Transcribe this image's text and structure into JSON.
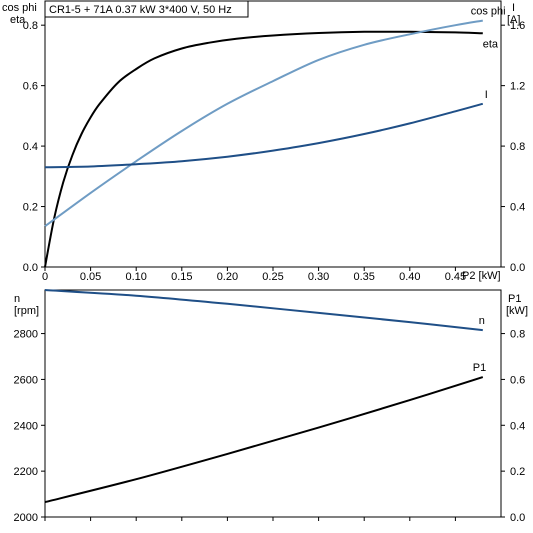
{
  "title": "CR1-5 + 71A   0.37 kW   3*400 V, 50 Hz",
  "colors": {
    "eta": "#000000",
    "cosphi": "#6f9cc4",
    "current": "#1f4f87",
    "speed": "#1f4f87",
    "power": "#000000",
    "grid": "#000000"
  },
  "chart_data": [
    {
      "type": "line",
      "xlabel": "P2 [kW]",
      "xlim": [
        0,
        0.5
      ],
      "xticks": [
        "0",
        "0.05",
        "0.10",
        "0.15",
        "0.20",
        "0.25",
        "0.30",
        "0.35",
        "0.40",
        "0.45"
      ],
      "ylabel_left": [
        "cos phi",
        "eta"
      ],
      "ylim_left": [
        0,
        0.88
      ],
      "yticks_left": [
        "0.0",
        "0.2",
        "0.4",
        "0.6",
        "0.8"
      ],
      "ylabel_right": [
        "I",
        "[A]"
      ],
      "ylim_right": [
        0,
        1.76
      ],
      "yticks_right": [
        "0.0",
        "0.4",
        "0.8",
        "1.2",
        "1.6"
      ],
      "grid": false,
      "series": [
        {
          "name": "eta",
          "axis": "left",
          "x": [
            0,
            0.01,
            0.02,
            0.03,
            0.04,
            0.05,
            0.06,
            0.08,
            0.1,
            0.12,
            0.15,
            0.18,
            0.21,
            0.25,
            0.3,
            0.35,
            0.4,
            0.45,
            0.48
          ],
          "y": [
            0,
            0.16,
            0.28,
            0.37,
            0.44,
            0.495,
            0.54,
            0.61,
            0.655,
            0.69,
            0.723,
            0.742,
            0.755,
            0.766,
            0.774,
            0.778,
            0.778,
            0.776,
            0.773
          ]
        },
        {
          "name": "cos phi",
          "axis": "left",
          "x": [
            0,
            0.05,
            0.1,
            0.15,
            0.2,
            0.25,
            0.3,
            0.35,
            0.4,
            0.45,
            0.48
          ],
          "y": [
            0.135,
            0.245,
            0.35,
            0.45,
            0.54,
            0.615,
            0.685,
            0.735,
            0.77,
            0.8,
            0.815
          ]
        },
        {
          "name": "I",
          "axis": "right",
          "x": [
            0,
            0.05,
            0.1,
            0.15,
            0.2,
            0.25,
            0.3,
            0.35,
            0.4,
            0.45,
            0.48
          ],
          "y": [
            0.66,
            0.665,
            0.68,
            0.7,
            0.73,
            0.77,
            0.82,
            0.88,
            0.95,
            1.03,
            1.08
          ]
        }
      ]
    },
    {
      "type": "line",
      "xlim": [
        0,
        0.5
      ],
      "ylabel_left": [
        "n",
        "[rpm]"
      ],
      "ylim_left": [
        2000,
        2990
      ],
      "yticks_left": [
        "2000",
        "2200",
        "2400",
        "2600",
        "2800"
      ],
      "ylabel_right": [
        "P1",
        "[kW]"
      ],
      "ylim_right": [
        0,
        0.99
      ],
      "yticks_right": [
        "0.0",
        "0.2",
        "0.4",
        "0.6",
        "0.8"
      ],
      "grid": false,
      "series": [
        {
          "name": "n",
          "axis": "left",
          "x": [
            0,
            0.1,
            0.2,
            0.3,
            0.4,
            0.48
          ],
          "y": [
            2990,
            2965,
            2930,
            2890,
            2850,
            2815
          ]
        },
        {
          "name": "P1",
          "axis": "right",
          "x": [
            0,
            0.1,
            0.2,
            0.3,
            0.4,
            0.48
          ],
          "y": [
            0.065,
            0.165,
            0.275,
            0.39,
            0.51,
            0.61
          ]
        }
      ]
    }
  ]
}
